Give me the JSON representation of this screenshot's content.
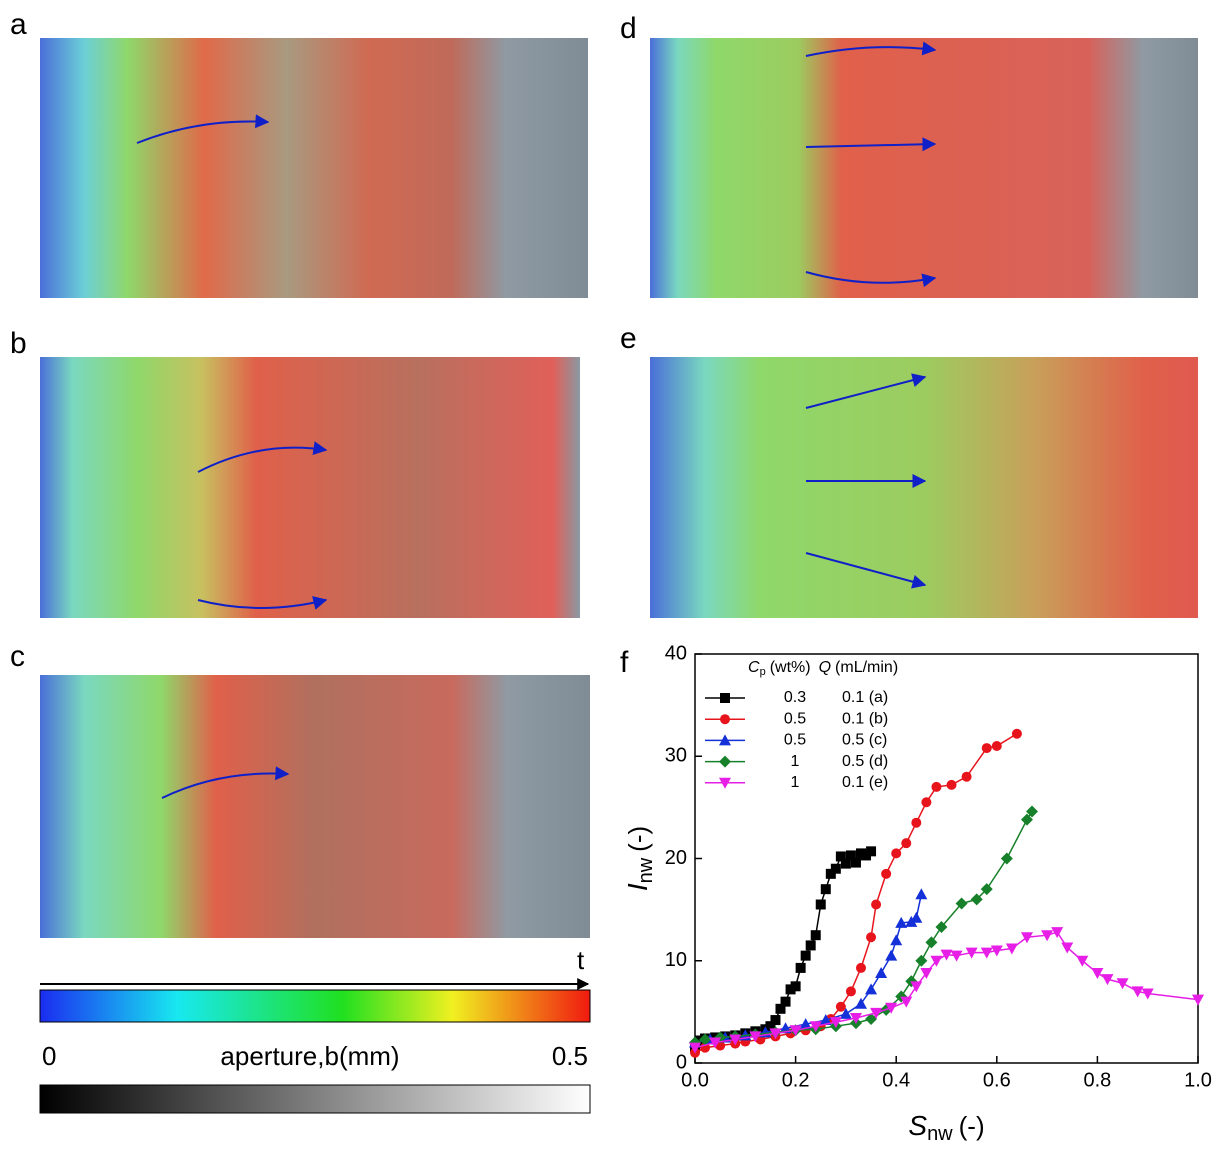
{
  "panels": {
    "a": "a",
    "b": "b",
    "c": "c",
    "d": "d",
    "e": "e"
  },
  "colorbar": {
    "time_label": "t",
    "min_label": "0",
    "title": "aperture,b(mm)",
    "max_label": "0.5"
  },
  "chart_data": {
    "type": "line",
    "panel_label": "f",
    "xlabel": {
      "symbol": "S",
      "sub": "nw",
      "unit": "(-)"
    },
    "ylabel": {
      "symbol": "I",
      "sub": "nw",
      "unit": "(-)"
    },
    "legend_header": {
      "c_symbol": "C",
      "c_sub": "p",
      "c_unit": "(wt%)",
      "q_symbol": "Q",
      "q_unit": "(mL/min)"
    },
    "xlim": [
      0,
      1
    ],
    "xticks": [
      {
        "value": 0,
        "label": "0.0"
      },
      0.2,
      0.4,
      0.6,
      0.8,
      {
        "value": 1,
        "label": "1.0"
      }
    ],
    "ylim": [
      0,
      40
    ],
    "yticks": [
      0,
      10,
      20,
      30,
      40
    ],
    "legend": "upper left",
    "series": [
      {
        "name": "0.3",
        "flow": "0.1 (a)",
        "color": "#000000",
        "marker": "square",
        "x": [
          0.0,
          0.01,
          0.02,
          0.04,
          0.06,
          0.08,
          0.1,
          0.12,
          0.14,
          0.15,
          0.16,
          0.17,
          0.18,
          0.19,
          0.2,
          0.21,
          0.22,
          0.23,
          0.24,
          0.25,
          0.26,
          0.27,
          0.28,
          0.29,
          0.3,
          0.31,
          0.32,
          0.33,
          0.34,
          0.35
        ],
        "values": [
          1.5,
          2.2,
          2.4,
          2.5,
          2.6,
          2.7,
          2.9,
          3.1,
          3.3,
          3.6,
          4.2,
          5.3,
          6.0,
          7.2,
          7.5,
          9.3,
          10.5,
          11.5,
          12.5,
          15.5,
          17.0,
          18.5,
          19.0,
          20.2,
          19.5,
          20.3,
          19.6,
          20.5,
          20.3,
          20.7
        ]
      },
      {
        "name": "0.5",
        "flow": "0.1 (b)",
        "color": "#e8141c",
        "marker": "circle",
        "x": [
          0.0,
          0.02,
          0.05,
          0.08,
          0.1,
          0.13,
          0.16,
          0.19,
          0.22,
          0.25,
          0.27,
          0.29,
          0.31,
          0.33,
          0.35,
          0.36,
          0.38,
          0.4,
          0.42,
          0.44,
          0.46,
          0.48,
          0.51,
          0.54,
          0.58,
          0.6,
          0.64
        ],
        "values": [
          1.0,
          1.5,
          1.7,
          1.9,
          2.1,
          2.3,
          2.6,
          2.9,
          3.2,
          3.6,
          4.3,
          5.5,
          7.0,
          9.3,
          12.3,
          15.5,
          18.5,
          20.5,
          21.5,
          23.5,
          25.5,
          27.0,
          27.2,
          28.0,
          30.8,
          31.0,
          32.2
        ]
      },
      {
        "name": "0.5",
        "flow": "0.5 (c)",
        "color": "#1430d8",
        "marker": "triangle-up",
        "x": [
          0.0,
          0.03,
          0.06,
          0.1,
          0.14,
          0.18,
          0.22,
          0.26,
          0.3,
          0.33,
          0.35,
          0.37,
          0.39,
          0.4,
          0.41,
          0.43,
          0.44,
          0.45
        ],
        "values": [
          2.0,
          2.3,
          2.5,
          2.7,
          3.0,
          3.4,
          3.8,
          4.2,
          4.8,
          5.8,
          7.2,
          8.8,
          10.5,
          12.0,
          13.7,
          13.8,
          14.2,
          16.5
        ]
      },
      {
        "name": "1",
        "flow": "0.5 (d)",
        "color": "#17802a",
        "marker": "diamond",
        "x": [
          0.0,
          0.02,
          0.05,
          0.08,
          0.12,
          0.16,
          0.2,
          0.24,
          0.28,
          0.32,
          0.35,
          0.38,
          0.41,
          0.43,
          0.45,
          0.47,
          0.49,
          0.53,
          0.56,
          0.58,
          0.62,
          0.66,
          0.67
        ],
        "values": [
          2.0,
          2.3,
          2.5,
          2.6,
          2.8,
          3.0,
          3.2,
          3.3,
          3.6,
          3.9,
          4.3,
          5.2,
          6.5,
          8.0,
          10.0,
          11.8,
          13.3,
          15.6,
          16.0,
          17.0,
          20.0,
          23.8,
          24.6
        ]
      },
      {
        "name": "1",
        "flow": "0.1 (e)",
        "color": "#e61ee6",
        "marker": "triangle-down",
        "x": [
          0.0,
          0.04,
          0.08,
          0.12,
          0.16,
          0.2,
          0.24,
          0.28,
          0.32,
          0.36,
          0.39,
          0.42,
          0.44,
          0.46,
          0.48,
          0.5,
          0.52,
          0.55,
          0.58,
          0.6,
          0.63,
          0.66,
          0.7,
          0.72,
          0.74,
          0.77,
          0.8,
          0.82,
          0.85,
          0.88,
          0.9,
          1.0
        ],
        "values": [
          1.5,
          2.0,
          2.3,
          2.6,
          2.9,
          3.2,
          3.6,
          4.0,
          4.4,
          4.9,
          5.4,
          6.0,
          7.5,
          8.8,
          10.0,
          10.6,
          10.5,
          10.8,
          10.8,
          11.0,
          11.2,
          12.3,
          12.5,
          12.8,
          11.3,
          10.0,
          8.8,
          8.2,
          7.8,
          7.0,
          6.8,
          6.2
        ]
      }
    ]
  }
}
